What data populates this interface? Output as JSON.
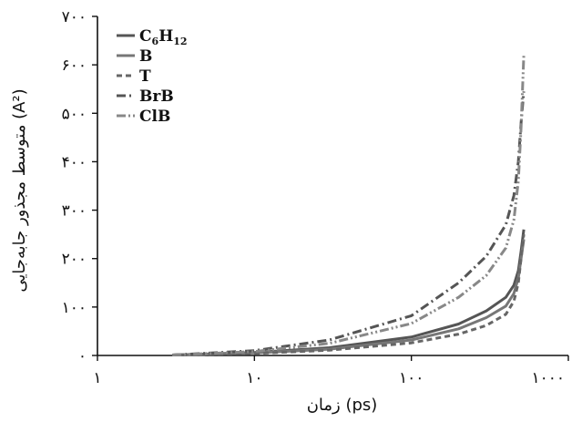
{
  "chart_data": {
    "type": "line",
    "xlabel": "زمان (ps)",
    "ylabel": "متوسط مجذور جابه‌جایی (A²)",
    "x_scale": "log",
    "xlim": [
      1,
      1000
    ],
    "ylim": [
      0,
      700
    ],
    "x_ticks": [
      1,
      10,
      100,
      1000
    ],
    "x_tick_labels": [
      "۱",
      "۱۰",
      "۱۰۰",
      "۱۰۰۰"
    ],
    "y_ticks": [
      0,
      100,
      200,
      300,
      400,
      500,
      600,
      700
    ],
    "y_tick_labels": [
      "۰",
      "۱۰۰",
      "۲۰۰",
      "۳۰۰",
      "۴۰۰",
      "۵۰۰",
      "۶۰۰",
      "۷۰۰"
    ],
    "grid": false,
    "legend_position": "top-left",
    "series": [
      {
        "name": "C6H12",
        "legend_main": "C",
        "legend_sub": "6",
        "legend_main2": "H",
        "legend_sub2": "12",
        "color": "#555555",
        "dash": "",
        "x": [
          3,
          10,
          30,
          100,
          200,
          300,
          400,
          450,
          480,
          500,
          520
        ],
        "y": [
          1,
          6,
          16,
          38,
          65,
          92,
          120,
          145,
          175,
          215,
          260
        ]
      },
      {
        "name": "B",
        "color": "#777777",
        "dash": "",
        "x": [
          3,
          10,
          30,
          100,
          200,
          300,
          400,
          450,
          480,
          500,
          520
        ],
        "y": [
          1,
          5,
          13,
          32,
          55,
          78,
          102,
          128,
          160,
          200,
          240
        ]
      },
      {
        "name": "T",
        "color": "#666666",
        "dash": "6,4",
        "x": [
          3,
          10,
          30,
          100,
          200,
          300,
          400,
          450,
          480,
          500,
          520
        ],
        "y": [
          1,
          4,
          11,
          26,
          44,
          62,
          85,
          112,
          150,
          200,
          250
        ]
      },
      {
        "name": "BrB",
        "color": "#555555",
        "dash": "10,4,2,4",
        "x": [
          3,
          10,
          30,
          100,
          200,
          300,
          400,
          450,
          480,
          500,
          520
        ],
        "y": [
          1,
          10,
          32,
          82,
          150,
          205,
          270,
          330,
          400,
          480,
          545
        ]
      },
      {
        "name": "ClB",
        "color": "#888888",
        "dash": "10,3,2,3,2,3",
        "x": [
          3,
          10,
          30,
          100,
          200,
          300,
          400,
          450,
          480,
          500,
          520
        ],
        "y": [
          1,
          8,
          25,
          66,
          120,
          165,
          222,
          280,
          360,
          470,
          620
        ]
      }
    ]
  }
}
